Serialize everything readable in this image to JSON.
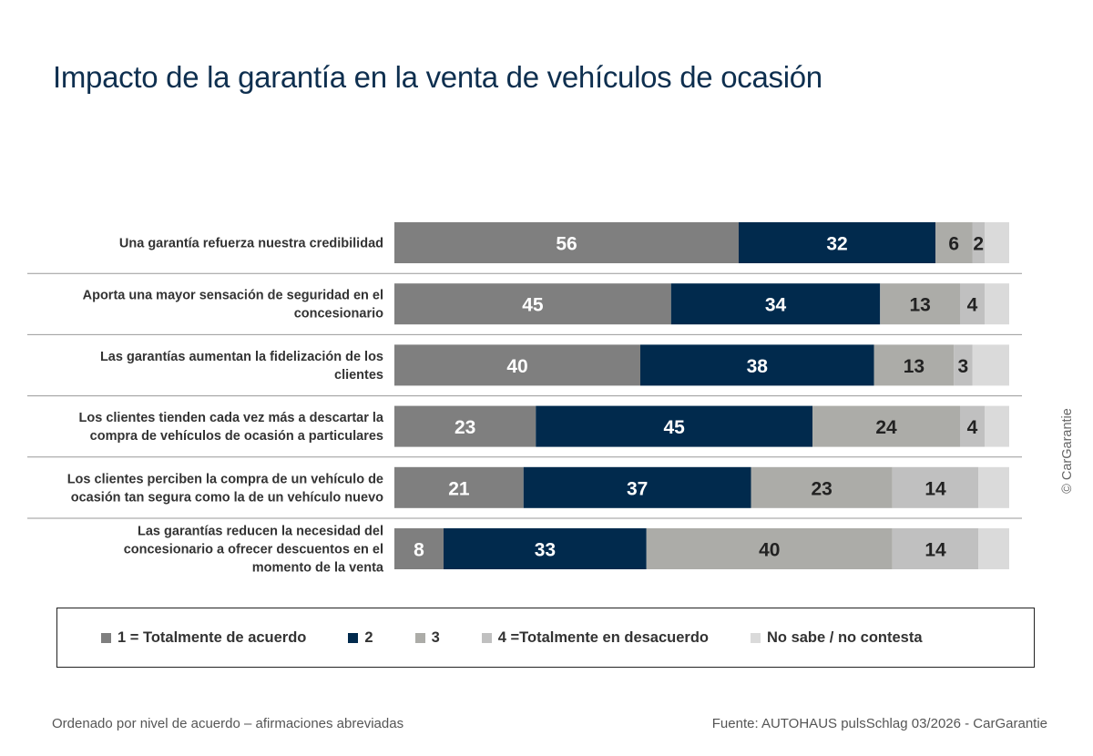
{
  "title": "Impacto de la garantía en la venta de vehículos de ocasión",
  "chart_data": {
    "type": "bar",
    "orientation": "horizontal",
    "stacked": true,
    "xlim": [
      0,
      100
    ],
    "categories": [
      "Una garantía refuerza nuestra credibilidad",
      "Aporta una mayor sensación de seguridad en el concesionario",
      "Las garantías aumentan la fidelización de los clientes",
      "Los clientes tienden cada vez más a descartar la compra de vehículos de ocasión a particulares",
      "Los clientes perciben la compra de un vehículo de ocasión tan segura como la de un vehículo nuevo",
      "Las garantías reducen la necesidad del concesionario a ofrecer descuentos en el momento de la venta"
    ],
    "category_lines": [
      [
        "Una garantía refuerza nuestra credibilidad"
      ],
      [
        "Aporta una mayor sensación de seguridad en el",
        "concesionario"
      ],
      [
        "Las garantías aumentan la fidelización de los",
        "clientes"
      ],
      [
        "Los clientes tienden cada vez más a descartar la",
        "compra de vehículos de ocasión a particulares"
      ],
      [
        "Los clientes perciben la compra de un vehículo de",
        "ocasión tan segura como la de un vehículo nuevo"
      ],
      [
        "Las garantías reducen la necesidad del",
        "concesionario a ofrecer descuentos en el",
        "momento de la venta"
      ]
    ],
    "series": [
      {
        "name": "1 = Totalmente de acuerdo",
        "color": "#7f7f7f",
        "values": [
          56,
          45,
          40,
          23,
          21,
          8
        ]
      },
      {
        "name": "2",
        "color": "#012a4d",
        "values": [
          32,
          34,
          38,
          45,
          37,
          33
        ]
      },
      {
        "name": "3",
        "color": "#acaca8",
        "values": [
          6,
          13,
          13,
          24,
          23,
          40
        ]
      },
      {
        "name": "4 =Totalmente en desacuerdo",
        "color": "#c0c0c0",
        "values": [
          2,
          4,
          3,
          4,
          14,
          14
        ]
      },
      {
        "name": "No sabe / no contesta",
        "color": "#dadada",
        "values": [
          4,
          4,
          6,
          4,
          5,
          5
        ]
      }
    ],
    "value_labels_shown_for_series": [
      0,
      1,
      2,
      3
    ],
    "legend_position": "bottom",
    "grid": false
  },
  "footer": {
    "left": "Ordenado por nivel de acuerdo – afirmaciones abreviadas",
    "right": "Fuente: AUTOHAUS pulsSchlag 03/2026 - CarGarantie"
  },
  "copyright": "© CarGarantie"
}
